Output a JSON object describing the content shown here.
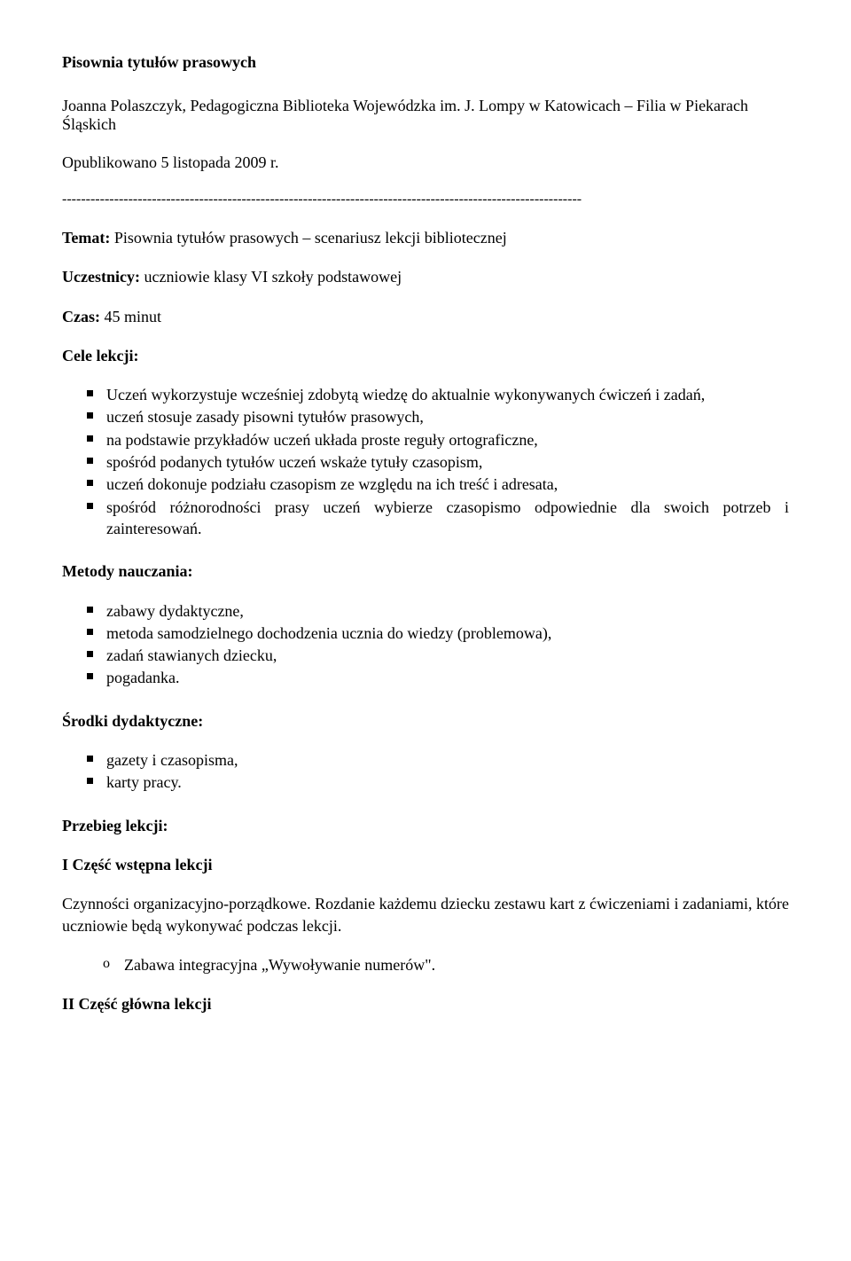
{
  "title": "Pisownia tytułów prasowych",
  "author_line": "Joanna Polaszczyk, Pedagogiczna Biblioteka Wojewódzka im. J. Lompy w Katowicach – Filia w Piekarach Śląskich",
  "pub_line": "Opublikowano 5 listopada 2009 r.",
  "divider": "--------------------------------------------------------------------------------------------------------------",
  "topic_label": "Temat:",
  "topic_text": " Pisownia tytułów prasowych – scenariusz lekcji bibliotecznej",
  "participants_label": "Uczestnicy:",
  "participants_text": " uczniowie klasy VI szkoły podstawowej",
  "time_label": "Czas:",
  "time_text": " 45 minut",
  "goals_heading": "Cele lekcji:",
  "goals": [
    "Uczeń wykorzystuje wcześniej zdobytą wiedzę do aktualnie wykonywanych ćwiczeń i zadań,",
    "uczeń stosuje zasady pisowni tytułów prasowych,",
    "na podstawie przykładów uczeń układa proste reguły ortograficzne,",
    "spośród podanych tytułów uczeń wskaże tytuły czasopism,",
    "uczeń dokonuje podziału czasopism ze względu na ich treść i adresata,",
    "spośród różnorodności prasy uczeń wybierze czasopismo odpowiednie dla swoich potrzeb i zainteresowań."
  ],
  "methods_heading": "Metody nauczania:",
  "methods": [
    "zabawy dydaktyczne,",
    "metoda samodzielnego dochodzenia ucznia do wiedzy (problemowa),",
    "zadań stawianych dziecku,",
    "pogadanka."
  ],
  "resources_heading": "Środki dydaktyczne:",
  "resources": [
    "gazety i czasopisma,",
    "karty pracy."
  ],
  "flow_heading": "Przebieg lekcji:",
  "part1_heading": "I Część wstępna lekcji",
  "part1_text": "Czynności organizacyjno-porządkowe. Rozdanie każdemu dziecku zestawu kart z ćwiczeniami i zadaniami, które uczniowie będą wykonywać podczas lekcji.",
  "part1_sub": "Zabawa integracyjna „Wywoływanie numerów\".",
  "part2_heading": "II Część główna lekcji"
}
